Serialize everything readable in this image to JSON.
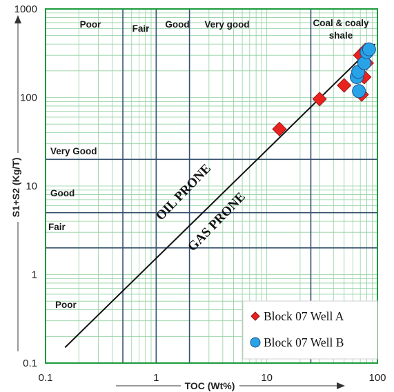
{
  "chart_data": {
    "type": "scatter",
    "xlabel": "TOC (Wt%)",
    "ylabel": "S1+S2 (Kg/T)",
    "xscale": "log",
    "yscale": "log",
    "xlim": [
      0.1,
      100
    ],
    "ylim": [
      0.1,
      1000
    ],
    "x_ticks": [
      "0.1",
      "1",
      "10",
      "100"
    ],
    "y_ticks": [
      "0.1",
      "1",
      "10",
      "100",
      "1000"
    ],
    "grid": false,
    "legend_position": "bottom-right",
    "toc_boundaries": [
      0.5,
      1,
      2,
      25
    ],
    "s1s2_boundaries": [
      2,
      5,
      20
    ],
    "toc_labels": [
      "Poor",
      "Fair",
      "Good",
      "Very good",
      "Coal & coaly",
      "shale"
    ],
    "s1s2_labels": [
      "Very Good",
      "Good",
      "Fair",
      "Poor"
    ],
    "zone_labels": [
      "OIL PRONE",
      "GAS PRONE"
    ],
    "divider_line": [
      [
        0.15,
        0.15
      ],
      [
        95,
        400
      ]
    ],
    "series": [
      {
        "name": "Block 07 Well A",
        "marker": "diamond",
        "color": "#e8231f",
        "points": [
          [
            13,
            44
          ],
          [
            30,
            96
          ],
          [
            50,
            137
          ],
          [
            72,
            108
          ],
          [
            76,
            170
          ],
          [
            80,
            245
          ],
          [
            70,
            300
          ],
          [
            78,
            345
          ]
        ]
      },
      {
        "name": "Block 07 Well B",
        "marker": "circle",
        "color": "#29a3e8",
        "points": [
          [
            68,
            118
          ],
          [
            65,
            170
          ],
          [
            67,
            195
          ],
          [
            76,
            245
          ],
          [
            80,
            325
          ],
          [
            84,
            350
          ]
        ]
      }
    ]
  },
  "colors": {
    "plot_border": "#1a9a3a",
    "minor_grid": "#8fcf9f",
    "major_lines": "#34506e",
    "divider": "#111111"
  }
}
